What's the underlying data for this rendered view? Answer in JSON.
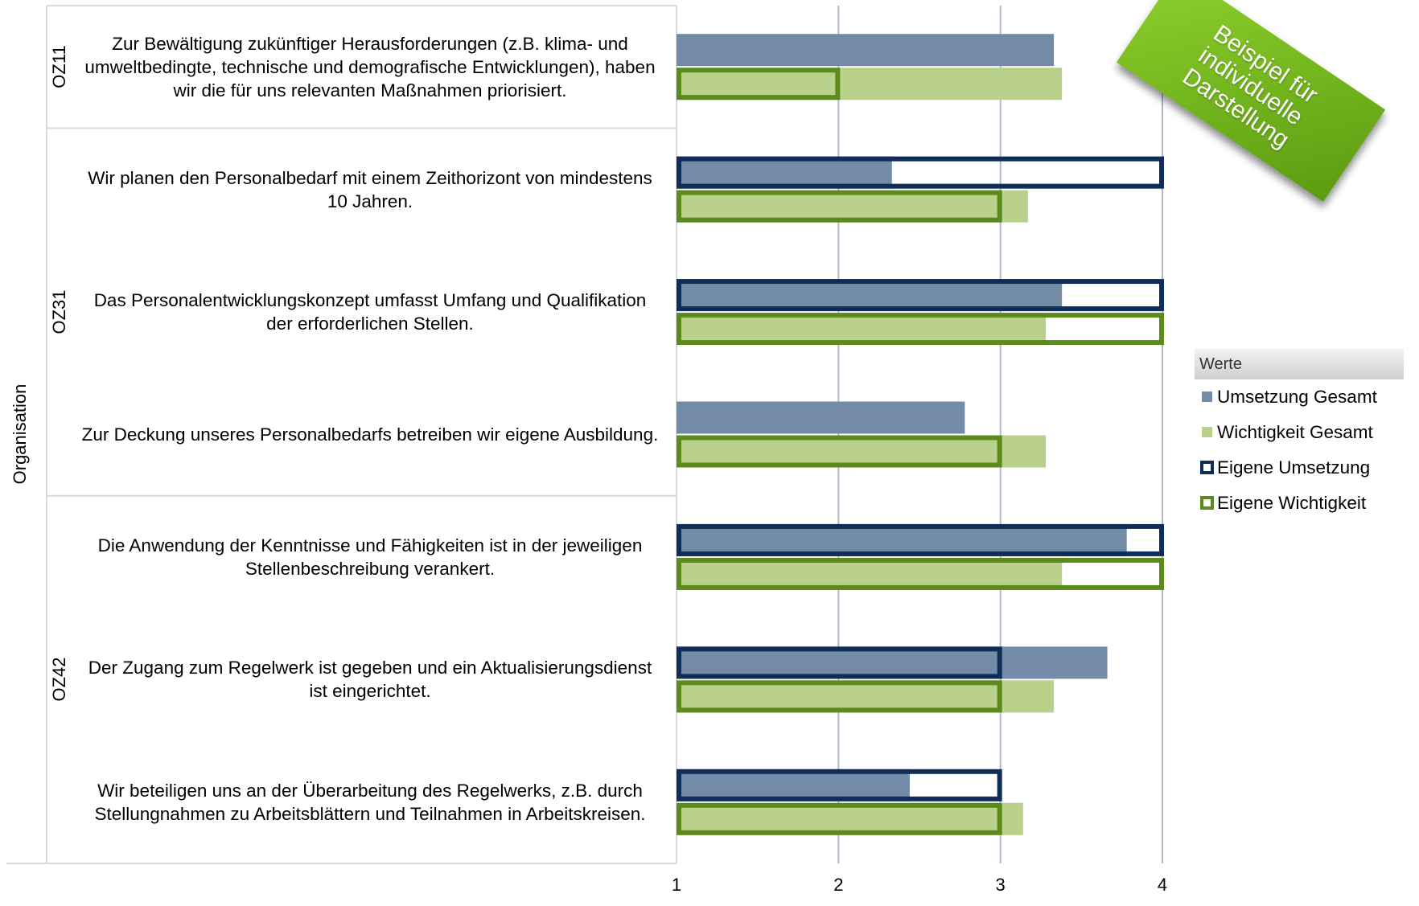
{
  "chart_data": {
    "type": "bar",
    "orientation": "horizontal",
    "axis_label": "Organisation",
    "xlim": [
      1,
      4
    ],
    "x_ticks": [
      "1",
      "2",
      "3",
      "4"
    ],
    "grid": "vertical",
    "legend_position": "right",
    "legend_title": "Werte",
    "groups": [
      {
        "label": "OZ11",
        "items": [
          0
        ]
      },
      {
        "label": "OZ31",
        "items": [
          1,
          2,
          3
        ]
      },
      {
        "label": "OZ42",
        "items": [
          4,
          5,
          6
        ]
      }
    ],
    "categories": [
      "Zur Bewältigung zukünftiger Herausforderungen (z.B. klima- und umweltbedingte, technische und demografische Entwicklungen), haben wir die für uns relevanten Maßnahmen priorisiert.",
      "Wir planen den Personalbedarf mit einem Zeithorizont von mindestens 10 Jahren.",
      "Das Personalentwicklungskonzept umfasst Umfang und Qualifikation der erforderlichen Stellen.",
      "Zur Deckung unseres Personalbedarfs betreiben wir eigene Ausbildung.",
      "Die Anwendung der Kenntnisse und Fähigkeiten ist in der jeweiligen Stellenbeschreibung verankert.",
      "Der Zugang zum Regelwerk ist gegeben und ein Aktualisierungsdienst ist eingerichtet.",
      "Wir beteiligen uns an der Überarbeitung des Regelwerks, z.B. durch Stellungnahmen zu Arbeitsblättern und Teilnahmen in Arbeitskreisen."
    ],
    "series": [
      {
        "name": "Umsetzung Gesamt",
        "color": "#738ba6",
        "style": "filled",
        "values": [
          3.33,
          2.33,
          3.38,
          2.78,
          3.78,
          3.66,
          2.44
        ]
      },
      {
        "name": "Wichtigkeit Gesamt",
        "color": "#b9d18a",
        "style": "filled",
        "values": [
          3.38,
          3.17,
          3.28,
          3.28,
          3.38,
          3.33,
          3.14
        ]
      },
      {
        "name": "Eigene Umsetzung",
        "color": "#0f2d56",
        "style": "outline",
        "values": [
          null,
          4,
          4,
          null,
          4,
          3,
          3
        ]
      },
      {
        "name": "Eigene Wichtigkeit",
        "color": "#5d8a1c",
        "style": "outline",
        "values": [
          2,
          3,
          4,
          3,
          4,
          3,
          3
        ]
      }
    ]
  },
  "badge": {
    "text": "Beispiel für\nindividuelle\nDarstellung"
  }
}
